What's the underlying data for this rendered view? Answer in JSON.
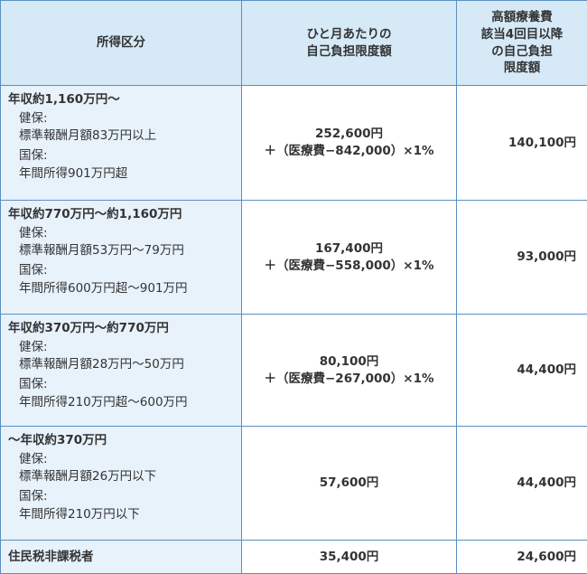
{
  "header": [
    "所得区分",
    [
      "ひと月あたりの",
      "自己負担限度額"
    ],
    [
      "高額療養費",
      "該当4回目以降",
      "の自己負担",
      "限度額"
    ]
  ],
  "rows": [
    {
      "category": "年収約1,160万円～",
      "details": [
        [
          "健保:",
          "標準報酬月額83万円以上"
        ],
        [
          "国保:",
          "年間所得901万円超"
        ]
      ],
      "limit": [
        "252,600円",
        "＋（医療費−842,000）×1%"
      ],
      "reduced": "140,100円"
    },
    {
      "category": "年収約770万円～約1,160万円",
      "details": [
        [
          "健保:",
          "標準報酬月額53万円～79万円"
        ],
        [
          "国保:",
          "年間所得600万円超～901万円"
        ]
      ],
      "limit": [
        "167,400円",
        "＋（医療費−558,000）×1%"
      ],
      "reduced": "93,000円"
    },
    {
      "category": "年収約370万円～約770万円",
      "details": [
        [
          "健保:",
          "標準報酬月額28万円～50万円"
        ],
        [
          "国保:",
          "年間所得210万円超～600万円"
        ]
      ],
      "limit": [
        "80,100円",
        "＋（医療費−267,000）×1%"
      ],
      "reduced": "44,400円"
    },
    {
      "category": "～年収約370万円",
      "details": [
        [
          "健保:",
          "標準報酬月額26万円以下"
        ],
        [
          "国保:",
          "年間所得210万円以下"
        ]
      ],
      "limit": [
        "57,600円"
      ],
      "reduced": "44,400円"
    },
    {
      "category": "住民税非課税者",
      "details": [],
      "limit": [
        "35,400円"
      ],
      "reduced": "24,600円"
    }
  ]
}
